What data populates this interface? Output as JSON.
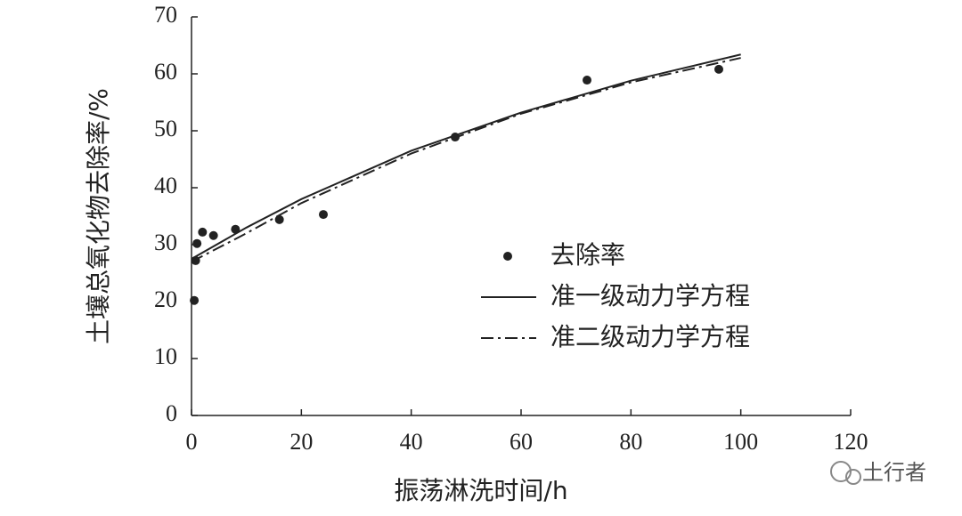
{
  "chart_data": {
    "type": "line",
    "x_label": "振荡淋洗时间/h",
    "y_label": "土壤总氧化物去除率/%",
    "xlim": [
      0,
      120
    ],
    "xticks": [
      0,
      20,
      40,
      60,
      80,
      100,
      120
    ],
    "ylim": [
      0,
      70
    ],
    "yticks": [
      0,
      10,
      20,
      30,
      40,
      50,
      60,
      70
    ],
    "series": [
      {
        "name": "去除率",
        "style": "markers",
        "color": "#222222",
        "x": [
          0.5,
          0.75,
          1,
          2,
          4,
          8,
          16,
          24,
          48,
          72,
          96
        ],
        "values": [
          20.2,
          27.2,
          30.2,
          32.2,
          31.6,
          32.7,
          34.4,
          35.3,
          48.9,
          58.9,
          60.8
        ]
      },
      {
        "name": "准一级动力学方程",
        "style": "solid",
        "color": "#222222",
        "x": [
          0,
          10,
          20,
          40,
          60,
          80,
          100
        ],
        "values": [
          27.5,
          33,
          38,
          46.5,
          53.2,
          58.8,
          63.4
        ]
      },
      {
        "name": "准二级动力学方程",
        "style": "dashdot",
        "color": "#222222",
        "x": [
          0,
          10,
          20,
          40,
          60,
          80,
          100
        ],
        "values": [
          27,
          32,
          37.3,
          46,
          53,
          58.5,
          62.8
        ]
      }
    ],
    "legend": "center-right",
    "watermark": "土行者"
  }
}
